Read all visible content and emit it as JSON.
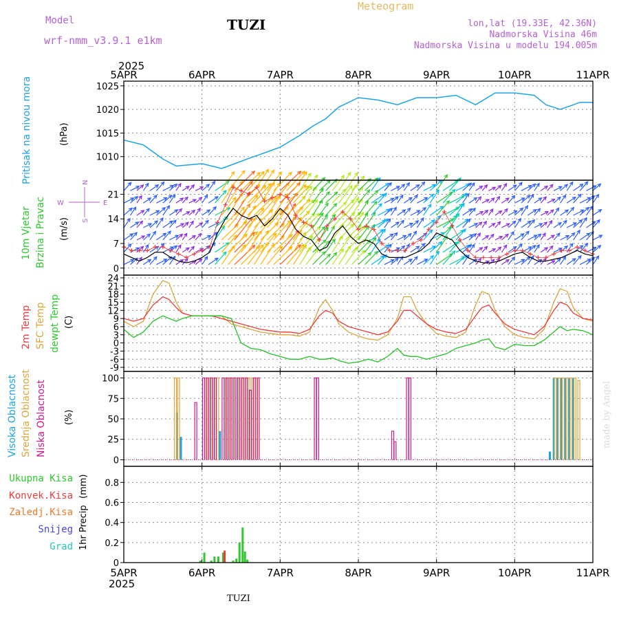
{
  "header": {
    "model_label": "Model",
    "model_name": "wrf-nmm_v3.9.1 e1km",
    "station": "TUZI",
    "meteogram_label": "Meteogram",
    "coords": "lon,lat (19.33E, 42.36N)",
    "elevation": "Nadmorska Visina 46m",
    "model_elevation": "Nadmorska Visina u modelu 194.005m"
  },
  "footer": {
    "station": "TUZI",
    "credit": "made by Angel"
  },
  "time_axis": {
    "year": "2025",
    "labels": [
      "5APR",
      "6APR",
      "7APR",
      "8APR",
      "9APR",
      "10APR",
      "11APR"
    ]
  },
  "colors": {
    "pressure": "#1aa3e6",
    "temp2m": "#ee3b3b",
    "sfc": "#dba53a",
    "dewpt": "#22c222",
    "high_cloud": "#1aa3e6",
    "mid_cloud": "#dba53a",
    "low_cloud": "#cc1a8a",
    "precip_total": "#2ec82e",
    "precip_conv": "#ee3b3b",
    "precip_frz": "#f07a28",
    "snow": "#4646e6",
    "hail": "#22c8b4",
    "model_text": "#b45fd6",
    "meteogram_text": "#e8b860"
  },
  "chart_data": [
    {
      "type": "line",
      "panel": "pressure",
      "ylabel": "Pritisak na nivou mora",
      "unit": "(hPa)",
      "ylim": [
        1005,
        1026
      ],
      "yticks": [
        1010,
        1015,
        1020,
        1025
      ],
      "x_days": [
        0,
        0.25,
        0.5,
        0.67,
        1.0,
        1.25,
        1.42,
        1.58,
        1.75,
        2.0,
        2.25,
        2.42,
        2.58,
        2.75,
        3.0,
        3.25,
        3.5,
        3.75,
        4.0,
        4.25,
        4.5,
        4.75,
        5.0,
        5.25,
        5.4,
        5.58,
        5.75,
        5.83,
        6.0
      ],
      "series": [
        {
          "values": [
            1013.5,
            1012.5,
            1009.5,
            1008.0,
            1008.5,
            1007.5,
            1008.5,
            1009.5,
            1010.5,
            1012.0,
            1014.5,
            1016.5,
            1018.0,
            1020.5,
            1022.5,
            1022.0,
            1021.0,
            1022.5,
            1022.5,
            1023.0,
            1021.0,
            1023.5,
            1023.5,
            1023.0,
            1021.0,
            1020.0,
            1021.0,
            1021.5,
            1021.5
          ]
        }
      ]
    },
    {
      "type": "line",
      "panel": "wind",
      "ylabel": "10m Vjetar",
      "ylabel2": "Brzina i Pravac",
      "unit": "(m/s)",
      "ylim": [
        -2,
        25
      ],
      "yticks": [
        0,
        7,
        14,
        21
      ],
      "compass": {
        "n": "N",
        "s": "S",
        "e": "E",
        "w": "W"
      },
      "x_days": [
        0,
        0.1,
        0.2,
        0.3,
        0.4,
        0.5,
        0.6,
        0.7,
        0.8,
        0.9,
        1.0,
        1.1,
        1.2,
        1.3,
        1.4,
        1.5,
        1.6,
        1.7,
        1.8,
        1.9,
        2.0,
        2.1,
        2.2,
        2.3,
        2.4,
        2.5,
        2.6,
        2.7,
        2.8,
        2.9,
        3.0,
        3.1,
        3.2,
        3.3,
        3.4,
        3.5,
        3.6,
        3.7,
        3.8,
        3.9,
        4.0,
        4.1,
        4.2,
        4.3,
        4.4,
        4.5,
        4.6,
        4.7,
        4.8,
        4.9,
        5.0,
        5.1,
        5.2,
        5.3,
        5.4,
        5.5,
        5.6,
        5.7,
        5.8,
        5.9,
        6.0
      ],
      "series": [
        {
          "name_hint": "10m wind speed",
          "values": [
            4,
            3,
            2,
            3,
            4.5,
            4.5,
            3,
            2,
            1.5,
            2,
            3,
            4.5,
            10,
            14,
            17,
            15,
            14,
            15,
            12,
            14,
            17,
            15,
            11,
            9,
            8,
            5,
            6,
            10,
            12,
            9,
            7,
            8,
            7,
            4,
            3,
            3,
            3,
            4,
            5,
            7,
            10,
            9,
            8,
            5,
            3,
            2,
            1.5,
            1.5,
            2,
            3,
            4,
            4.5,
            3,
            2,
            2,
            2.5,
            3,
            4,
            5,
            4,
            3.5
          ]
        },
        {
          "name_hint": "gusts",
          "values": [
            6,
            5,
            5,
            5,
            6,
            6,
            5,
            4,
            3,
            4,
            5,
            6,
            13,
            18,
            23,
            22,
            21,
            23,
            19,
            20,
            21,
            20,
            15,
            13,
            12,
            8,
            12,
            14,
            16,
            14,
            11,
            12,
            11,
            7,
            5,
            5,
            5,
            7,
            8,
            11,
            13,
            16,
            12,
            8,
            5,
            3,
            3,
            3,
            3,
            4,
            5,
            5,
            4,
            3,
            3,
            4,
            5,
            5,
            6,
            5,
            4
          ]
        }
      ]
    },
    {
      "type": "line",
      "panel": "temperature",
      "ylabel": "2m Temp",
      "ylabel2": "SFC Temp",
      "ylabel3": "dewpt Temp",
      "unit": "(C)",
      "ylim": [
        -10.5,
        25
      ],
      "yticks": [
        -9,
        -6,
        -3,
        0,
        3,
        6,
        9,
        12,
        15,
        18,
        21,
        24
      ],
      "x_days": [
        0,
        0.125,
        0.25,
        0.375,
        0.5,
        0.58,
        0.67,
        0.75,
        0.875,
        1.0,
        1.125,
        1.25,
        1.375,
        1.5,
        1.625,
        1.75,
        1.875,
        2.0,
        2.125,
        2.25,
        2.375,
        2.5,
        2.58,
        2.67,
        2.75,
        2.875,
        3.0,
        3.125,
        3.25,
        3.375,
        3.5,
        3.58,
        3.67,
        3.75,
        3.875,
        4.0,
        4.125,
        4.25,
        4.375,
        4.5,
        4.58,
        4.67,
        4.75,
        4.875,
        5.0,
        5.125,
        5.25,
        5.375,
        5.5,
        5.58,
        5.67,
        5.75,
        5.875,
        6.0
      ],
      "series": [
        {
          "name": "2m Temp",
          "values": [
            9,
            8,
            9,
            14,
            17,
            16,
            13,
            11,
            10,
            10,
            10,
            9,
            8,
            7,
            6,
            5,
            4.5,
            4,
            4,
            3.5,
            5,
            10,
            12,
            11,
            8,
            6,
            5,
            4,
            3,
            4,
            8,
            12,
            12,
            10,
            7,
            5,
            4,
            3.5,
            5,
            10,
            13,
            14,
            11,
            7,
            5,
            4,
            3,
            6,
            12,
            15,
            14,
            11,
            9,
            8.5
          ]
        },
        {
          "name": "SFC Temp",
          "values": [
            8,
            6,
            8,
            18,
            23,
            22,
            15,
            11,
            10,
            10,
            10,
            10,
            7,
            6,
            5,
            4,
            3.5,
            3,
            3,
            2.5,
            4,
            13,
            16,
            12,
            7,
            4,
            2.5,
            1.5,
            1,
            3,
            9,
            17,
            17,
            12,
            7,
            3.5,
            2.5,
            2,
            4,
            14,
            19,
            18,
            12,
            6,
            3,
            2,
            1.5,
            5,
            15,
            20,
            19,
            13,
            9,
            8
          ]
        },
        {
          "name": "dewpt Temp",
          "values": [
            5,
            2,
            4,
            8,
            10,
            9,
            8,
            9,
            10,
            10,
            10,
            10,
            9,
            0,
            -2,
            -2.5,
            -4,
            -5,
            -6,
            -6,
            -5,
            -6,
            -6,
            -5.5,
            -6.5,
            -7.5,
            -7,
            -6,
            -7,
            -5,
            -2,
            -4.5,
            -5,
            -5,
            -6,
            -5,
            -4,
            -2,
            -1,
            0,
            1,
            1.5,
            -1.5,
            -2.5,
            -0.5,
            -1,
            -1,
            1,
            4,
            6,
            4.5,
            5,
            4.5,
            3
          ]
        }
      ]
    },
    {
      "type": "bar",
      "panel": "clouds",
      "ylabel": "Visoka Oblacnost",
      "ylabel2": "Srednja Oblacnost",
      "ylabel3": "Niska Oblacnost",
      "unit": "(%)",
      "ylim": [
        -8,
        108
      ],
      "yticks": [
        0,
        25,
        50,
        75,
        100
      ],
      "series": [
        {
          "name": "Visoka Oblacnost",
          "x_days": [
            0.68,
            0.73,
            1.23,
            5.45,
            5.5,
            5.55,
            5.6,
            5.65,
            5.7,
            5.75
          ],
          "values": [
            58,
            28,
            35,
            10,
            100,
            100,
            100,
            100,
            100,
            100
          ]
        },
        {
          "name": "Srednja Oblacnost",
          "x_days": [
            0.66,
            0.7,
            1.05,
            1.1,
            1.15,
            1.2,
            1.3,
            1.35,
            1.4,
            1.45,
            1.5,
            1.55,
            1.6,
            1.65,
            1.7,
            5.52,
            5.57,
            5.62,
            5.67,
            5.72,
            5.77,
            5.82
          ],
          "values": [
            100,
            100,
            100,
            100,
            100,
            100,
            100,
            100,
            100,
            100,
            100,
            100,
            100,
            100,
            100,
            100,
            100,
            100,
            100,
            100,
            100,
            97
          ]
        },
        {
          "name": "Niska Oblacnost",
          "x_days": [
            0.92,
            1.02,
            1.07,
            1.12,
            1.17,
            1.27,
            1.32,
            1.37,
            1.42,
            1.47,
            1.52,
            1.57,
            1.62,
            1.67,
            1.72,
            2.45,
            2.48,
            3.44,
            3.47,
            3.63,
            3.66
          ],
          "values": [
            70,
            100,
            100,
            100,
            100,
            100,
            100,
            100,
            100,
            100,
            100,
            100,
            85,
            100,
            100,
            100,
            100,
            35,
            22,
            100,
            100
          ]
        }
      ]
    },
    {
      "type": "bar",
      "panel": "precipitation",
      "ylabel": "1hr Precip",
      "unit": "(mm)",
      "ylim": [
        0,
        0.96
      ],
      "yticks": [
        0,
        0.2,
        0.4,
        0.6,
        0.8
      ],
      "legend": [
        "Ukupna Kisa",
        "Konvek.Kisa",
        "Zaledj.Kisa",
        "Snijeg",
        "Grad"
      ],
      "series": [
        {
          "name": "Ukupna Kisa",
          "x_days": [
            0.98,
            1.03,
            1.12,
            1.16,
            1.21,
            1.27,
            1.4,
            1.44,
            1.48,
            1.52,
            1.55,
            1.58
          ],
          "values": [
            0.02,
            0.1,
            0.02,
            0.06,
            0.06,
            0.1,
            0.02,
            0.04,
            0.2,
            0.35,
            0.11,
            0.03
          ]
        },
        {
          "name": "Konvek.Kisa",
          "x_days": [
            1.29
          ],
          "values": [
            0.12
          ]
        }
      ]
    }
  ]
}
